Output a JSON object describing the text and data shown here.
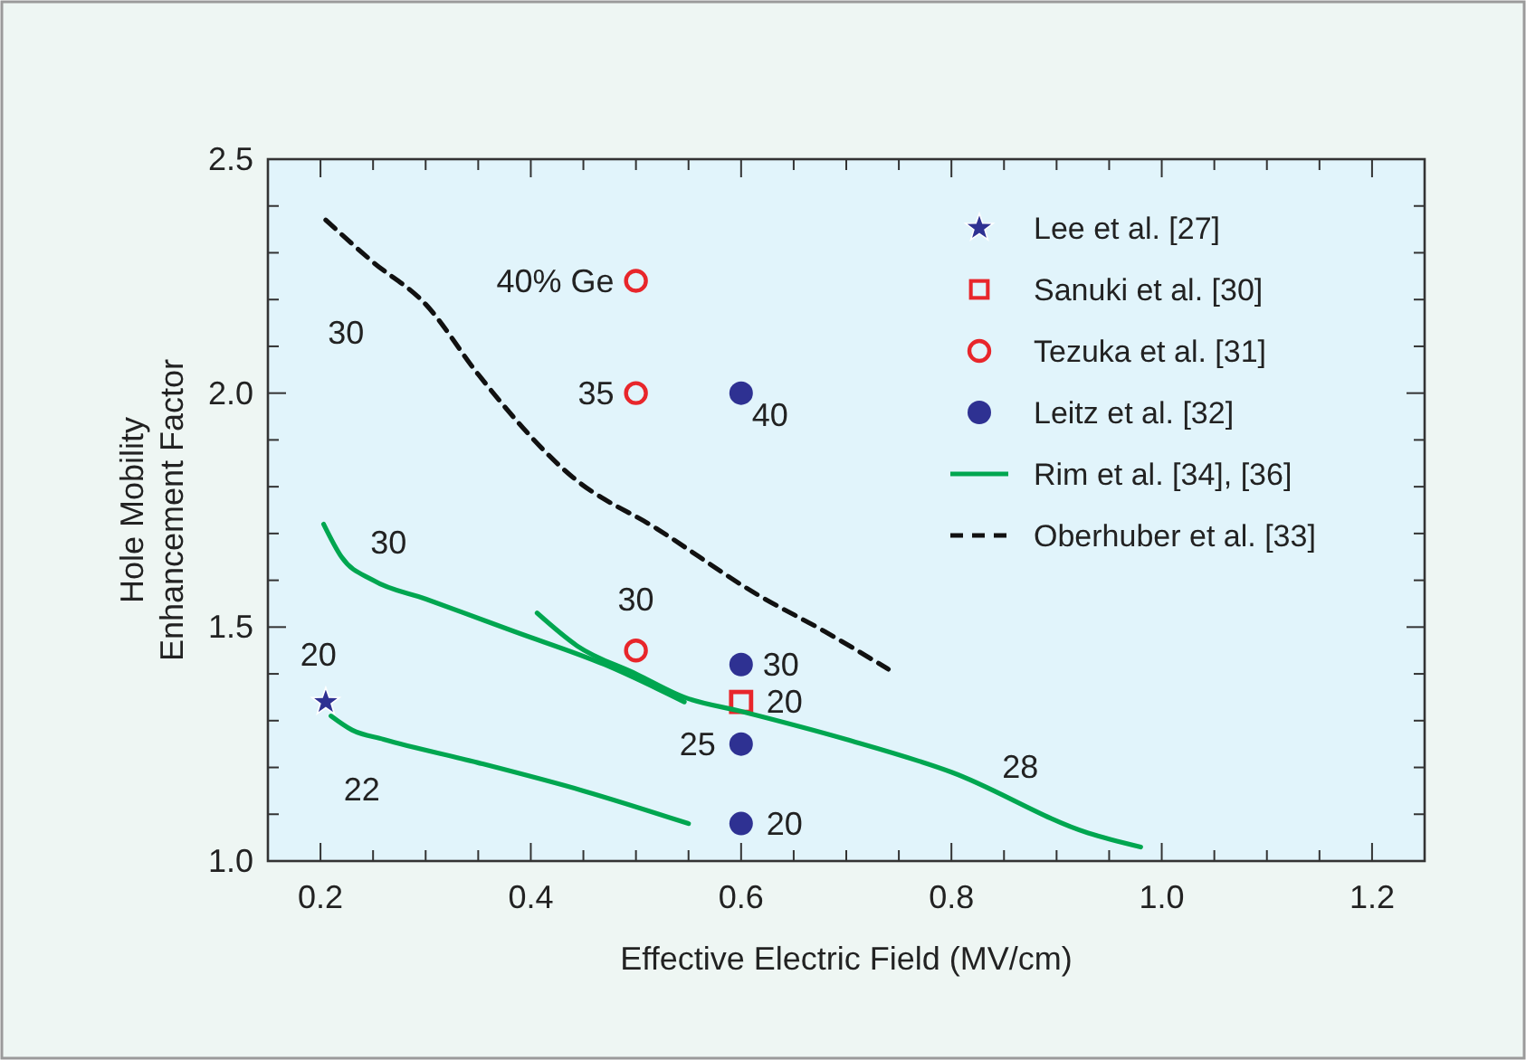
{
  "chart_data": {
    "type": "scatter",
    "xlabel": "Effective Electric Field (MV/cm)",
    "ylabel": "Hole Mobility\nEnhancement Factor",
    "xlim": [
      0.15,
      1.25
    ],
    "ylim": [
      1.0,
      2.5
    ],
    "xticks": [
      {
        "value": 0.15,
        "label": null
      },
      0.2,
      {
        "value": 0.25,
        "label": null
      },
      {
        "value": 0.3,
        "label": null
      },
      {
        "value": 0.35,
        "label": null
      },
      0.4,
      {
        "value": 0.45,
        "label": null
      },
      {
        "value": 0.5,
        "label": null
      },
      {
        "value": 0.55,
        "label": null
      },
      0.6,
      {
        "value": 0.65,
        "label": null
      },
      {
        "value": 0.7,
        "label": null
      },
      {
        "value": 0.75,
        "label": null
      },
      0.8,
      {
        "value": 0.85,
        "label": null
      },
      {
        "value": 0.9,
        "label": null
      },
      {
        "value": 0.95,
        "label": null
      },
      {
        "value": 1.0,
        "label": "1.0"
      },
      {
        "value": 1.05,
        "label": null
      },
      {
        "value": 1.1,
        "label": null
      },
      {
        "value": 1.15,
        "label": null
      },
      1.2
    ],
    "yticks": [
      {
        "value": 1.0,
        "label": "1.0"
      },
      {
        "value": 1.1,
        "label": null
      },
      {
        "value": 1.2,
        "label": null
      },
      {
        "value": 1.3,
        "label": null
      },
      {
        "value": 1.4,
        "label": null
      },
      1.5,
      {
        "value": 1.6,
        "label": null
      },
      {
        "value": 1.7,
        "label": null
      },
      {
        "value": 1.8,
        "label": null
      },
      {
        "value": 1.9,
        "label": null
      },
      {
        "value": 2.0,
        "label": "2.0"
      },
      {
        "value": 2.1,
        "label": null
      },
      {
        "value": 2.2,
        "label": null
      },
      {
        "value": 2.3,
        "label": null
      },
      {
        "value": 2.4,
        "label": null
      },
      2.5
    ],
    "legend": "top right",
    "grid": false,
    "series": [
      {
        "name": "Lee et al. [27]",
        "marker": "star",
        "color": "#2e3192",
        "x": [
          0.205
        ],
        "values": [
          1.34
        ]
      },
      {
        "name": "Sanuki et al. [30]",
        "marker": "square",
        "color": "#e8262b",
        "x": [
          0.6
        ],
        "values": [
          1.34
        ]
      },
      {
        "name": "Tezuka et al. [31]",
        "marker": "circle",
        "color": "#e8262b",
        "x": [
          0.5,
          0.5,
          0.5
        ],
        "values": [
          2.24,
          2.0,
          1.45
        ]
      },
      {
        "name": "Leitz et al. [32]",
        "marker": "circle",
        "color": "#2e3192",
        "x": [
          0.6,
          0.6,
          0.6,
          0.6
        ],
        "values": [
          2.0,
          1.42,
          1.25,
          1.08
        ]
      },
      {
        "name": "Rim et al. [34], [36]",
        "type": "line",
        "line_style": "solid",
        "color": "#00a650",
        "x": [
          0.203,
          0.22,
          0.25,
          0.3,
          0.385,
          0.47,
          0.546
        ],
        "values": [
          1.72,
          1.65,
          1.6,
          1.56,
          1.49,
          1.42,
          1.34
        ]
      },
      {
        "type": "line",
        "line_style": "solid",
        "color": "#00a650",
        "x": [
          0.406,
          0.444,
          0.5,
          0.546,
          0.6,
          0.7,
          0.8,
          0.93,
          0.98
        ],
        "values": [
          1.53,
          1.46,
          1.4,
          1.35,
          1.32,
          1.26,
          1.19,
          1.06,
          1.03
        ]
      },
      {
        "type": "line",
        "line_style": "solid",
        "color": "#00a650",
        "x": [
          0.21,
          0.23,
          0.26,
          0.35,
          0.45,
          0.55
        ],
        "values": [
          1.31,
          1.28,
          1.26,
          1.21,
          1.15,
          1.08
        ]
      },
      {
        "name": "Oberhuber et al. [33]",
        "type": "line",
        "line_style": "dashed",
        "color": "#111111",
        "x": [
          0.205,
          0.25,
          0.3,
          0.35,
          0.44,
          0.52,
          0.615,
          0.68,
          0.74
        ],
        "values": [
          2.37,
          2.28,
          2.19,
          2.04,
          1.82,
          1.71,
          1.57,
          1.49,
          1.41
        ]
      }
    ],
    "annotations": [
      {
        "text": "40% Ge",
        "x": 0.5,
        "y": 2.24
      },
      {
        "text": "35",
        "x": 0.5,
        "y": 2.0
      },
      {
        "text": "40",
        "x": 0.6,
        "y": 2.0
      },
      {
        "text": "30",
        "x": 0.25,
        "y": 2.28
      },
      {
        "text": "30",
        "x": 0.22,
        "y": 1.65
      },
      {
        "text": "30",
        "x": 0.5,
        "y": 1.45
      },
      {
        "text": "20",
        "x": 0.205,
        "y": 1.34
      },
      {
        "text": "22",
        "x": 0.26,
        "y": 1.26
      },
      {
        "text": "30",
        "x": 0.6,
        "y": 1.42
      },
      {
        "text": "20",
        "x": 0.6,
        "y": 1.34
      },
      {
        "text": "25",
        "x": 0.6,
        "y": 1.25
      },
      {
        "text": "20",
        "x": 0.6,
        "y": 1.08
      },
      {
        "text": "28",
        "x": 0.8,
        "y": 1.19
      }
    ]
  }
}
